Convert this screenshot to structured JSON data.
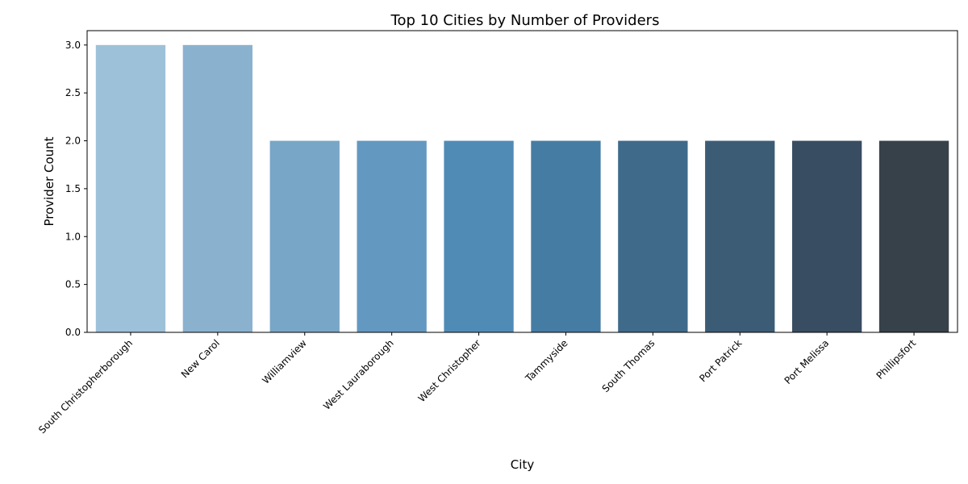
{
  "chart_data": {
    "type": "bar",
    "title": "Top 10 Cities by Number of Providers",
    "xlabel": "City",
    "ylabel": "Provider Count",
    "categories": [
      "South Christopherborough",
      "New Carol",
      "Williamview",
      "West Lauraborough",
      "West Christopher",
      "Tammyside",
      "South Thomas",
      "Port Patrick",
      "Port Melissa",
      "Phillipsfort"
    ],
    "values": [
      3,
      3,
      2,
      2,
      2,
      2,
      2,
      2,
      2,
      2
    ],
    "colors": [
      "#9dc1d8",
      "#8ab2cf",
      "#78a6c7",
      "#6398c0",
      "#508bb6",
      "#457ca3",
      "#3f6a8a",
      "#3c5c76",
      "#394d62",
      "#374149"
    ],
    "ylim": [
      0,
      3.15
    ],
    "yticks": [
      "0.0",
      "0.5",
      "1.0",
      "1.5",
      "2.0",
      "2.5",
      "3.0"
    ],
    "grid": false,
    "legend": "none"
  }
}
